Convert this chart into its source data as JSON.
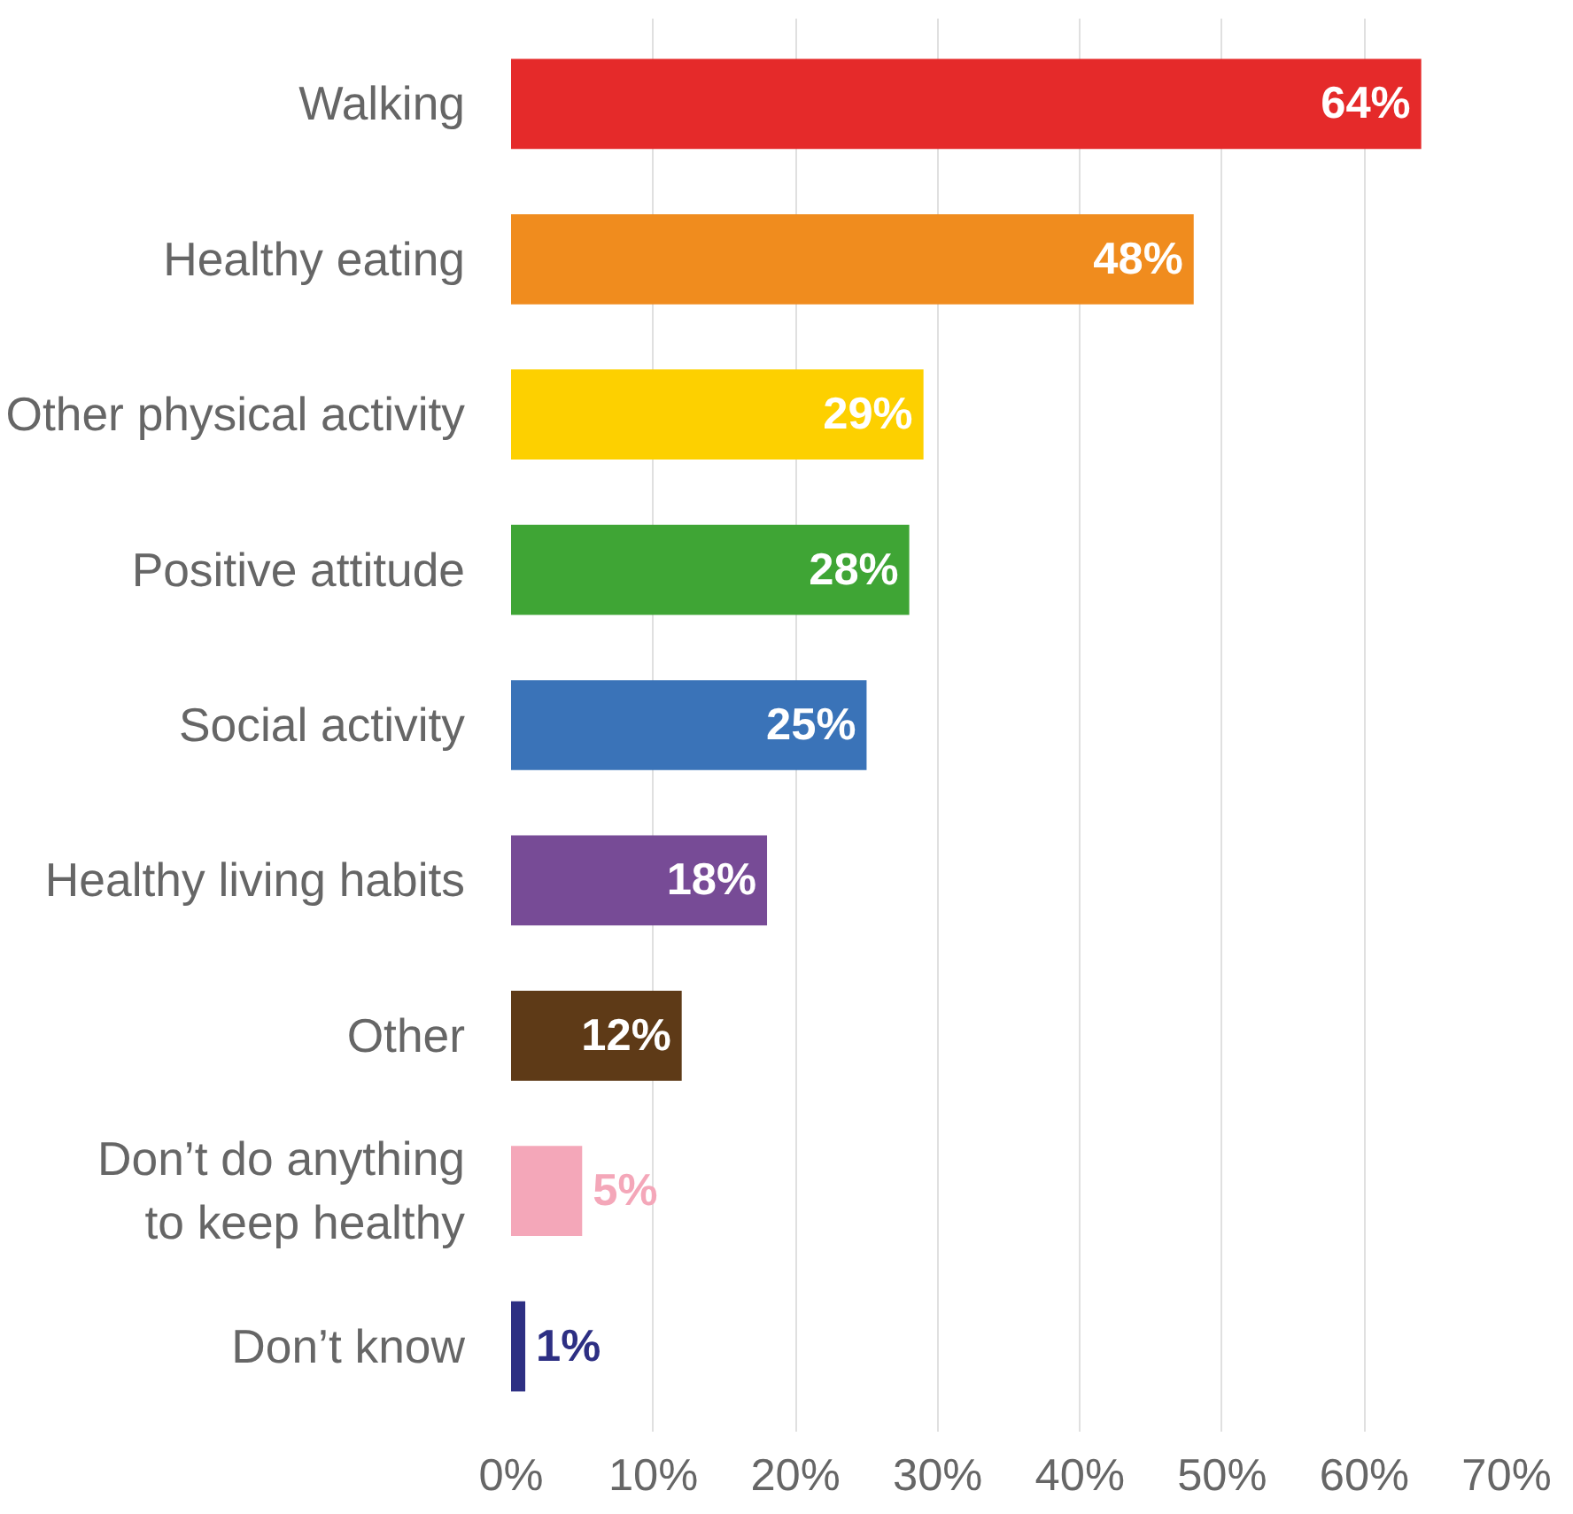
{
  "chart_data": {
    "type": "bar",
    "orientation": "horizontal",
    "categories": [
      "Walking",
      "Healthy eating",
      "Other physical activity",
      "Positive attitude",
      "Social activity",
      "Healthy living habits",
      "Other",
      "Don’t do anything\nto keep healthy",
      "Don’t know"
    ],
    "values": [
      64,
      48,
      29,
      28,
      25,
      18,
      12,
      5,
      1
    ],
    "colors": [
      "#e52a2a",
      "#f08c1e",
      "#fdd000",
      "#3fa535",
      "#3a73b8",
      "#774b96",
      "#5e3a17",
      "#f4a7b9",
      "#2d2f83"
    ],
    "value_labels": [
      "64%",
      "48%",
      "29%",
      "28%",
      "25%",
      "18%",
      "12%",
      "5%",
      "1%"
    ],
    "xlim": [
      0,
      70
    ],
    "xticks": [
      {
        "value": 0,
        "label": "0%"
      },
      {
        "value": 10,
        "label": "10%"
      },
      {
        "value": 20,
        "label": "20%"
      },
      {
        "value": 30,
        "label": "30%"
      },
      {
        "value": 40,
        "label": "40%"
      },
      {
        "value": 50,
        "label": "50%"
      },
      {
        "value": 60,
        "label": "60%"
      },
      {
        "value": 70,
        "label": "70%"
      }
    ],
    "grid": "x"
  }
}
